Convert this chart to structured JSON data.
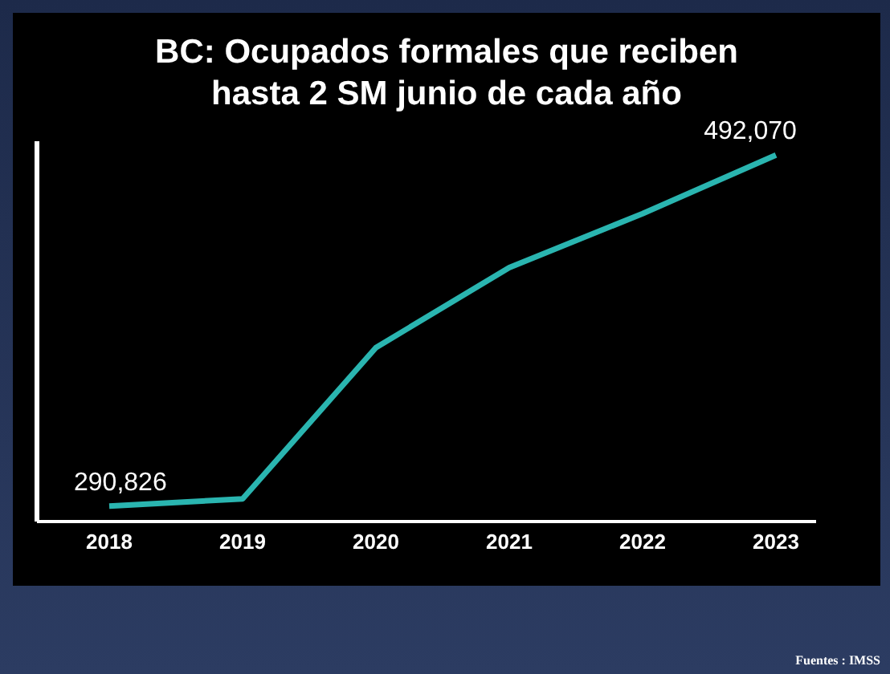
{
  "chart_data": {
    "type": "line",
    "title": "BC: Ocupados formales que reciben hasta 2 SM junio de cada año",
    "categories": [
      "2018",
      "2019",
      "2020",
      "2021",
      "2022",
      "2023"
    ],
    "series": [
      {
        "color": "#2ab5b0",
        "values": [
          290826,
          295000,
          381700,
          427600,
          458500,
          492070
        ],
        "value_labels": [
          "290,826",
          null,
          null,
          null,
          null,
          "492,070"
        ]
      }
    ],
    "ylim": [
      282000,
      500000
    ],
    "tick_labels": "x",
    "grid": false,
    "legend": false,
    "marker": "none",
    "line_style": "solid",
    "annotations": [
      "Fuentes : IMSS"
    ]
  }
}
